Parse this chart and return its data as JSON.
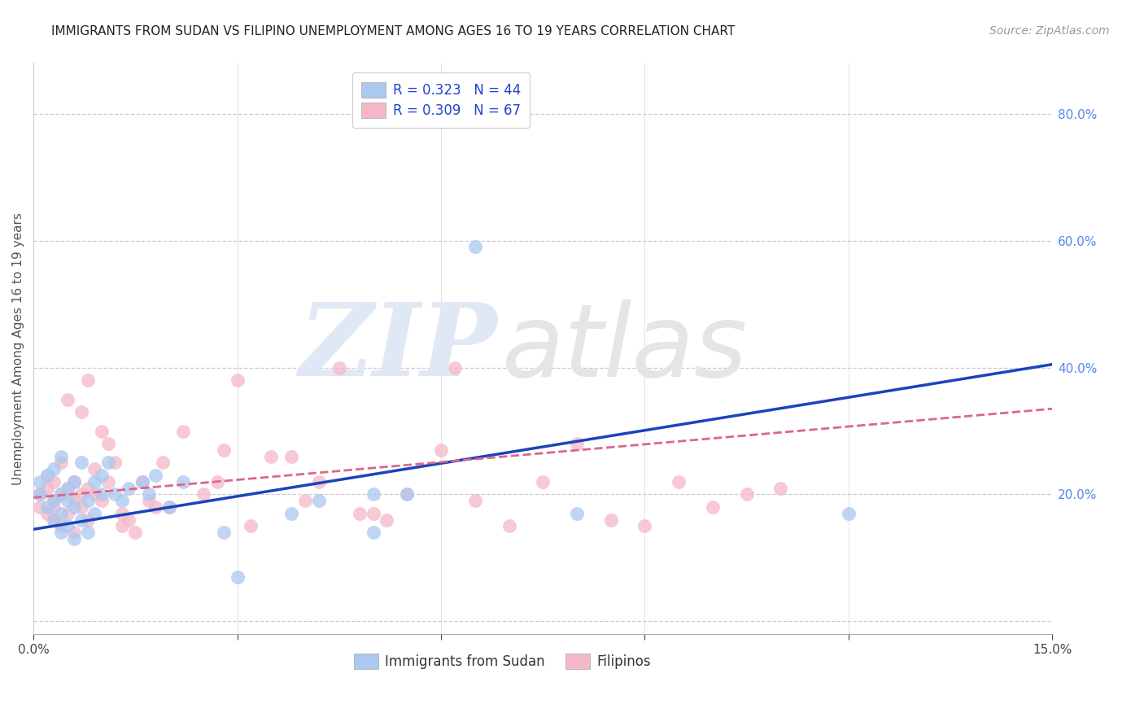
{
  "title": "IMMIGRANTS FROM SUDAN VS FILIPINO UNEMPLOYMENT AMONG AGES 16 TO 19 YEARS CORRELATION CHART",
  "source": "Source: ZipAtlas.com",
  "ylabel": "Unemployment Among Ages 16 to 19 years",
  "xlim": [
    0.0,
    0.15
  ],
  "ylim": [
    -0.02,
    0.88
  ],
  "right_yticks": [
    0.0,
    0.2,
    0.4,
    0.6,
    0.8
  ],
  "right_yticklabels": [
    "",
    "20.0%",
    "40.0%",
    "60.0%",
    "80.0%"
  ],
  "xticks": [
    0.0,
    0.03,
    0.06,
    0.09,
    0.12,
    0.15
  ],
  "xticklabels": [
    "0.0%",
    "",
    "",
    "",
    "",
    "15.0%"
  ],
  "grid_color": "#cccccc",
  "background_color": "#ffffff",
  "series1_color": "#aac8f0",
  "series2_color": "#f5b8c8",
  "line1_color": "#1a44bb",
  "line2_color": "#dd6688",
  "legend_label1": "R = 0.323   N = 44",
  "legend_label2": "R = 0.309   N = 67",
  "legend_bottom_label1": "Immigrants from Sudan",
  "legend_bottom_label2": "Filipinos",
  "watermark_zip": "ZIP",
  "watermark_atlas": "atlas",
  "line1_x0": 0.0,
  "line1_y0": 0.145,
  "line1_x1": 0.15,
  "line1_y1": 0.405,
  "line2_x0": 0.0,
  "line2_y0": 0.195,
  "line2_x1": 0.15,
  "line2_y1": 0.335,
  "series1_x": [
    0.001,
    0.001,
    0.002,
    0.002,
    0.003,
    0.003,
    0.003,
    0.004,
    0.004,
    0.004,
    0.004,
    0.005,
    0.005,
    0.005,
    0.006,
    0.006,
    0.006,
    0.007,
    0.007,
    0.008,
    0.008,
    0.009,
    0.009,
    0.01,
    0.01,
    0.011,
    0.012,
    0.013,
    0.014,
    0.016,
    0.017,
    0.018,
    0.02,
    0.022,
    0.028,
    0.03,
    0.038,
    0.042,
    0.05,
    0.055,
    0.065,
    0.08,
    0.05,
    0.12
  ],
  "series1_y": [
    0.2,
    0.22,
    0.18,
    0.23,
    0.19,
    0.16,
    0.24,
    0.14,
    0.17,
    0.2,
    0.26,
    0.15,
    0.21,
    0.19,
    0.13,
    0.18,
    0.22,
    0.16,
    0.25,
    0.14,
    0.19,
    0.22,
    0.17,
    0.23,
    0.2,
    0.25,
    0.2,
    0.19,
    0.21,
    0.22,
    0.2,
    0.23,
    0.18,
    0.22,
    0.14,
    0.07,
    0.17,
    0.19,
    0.14,
    0.2,
    0.59,
    0.17,
    0.2,
    0.17
  ],
  "series2_x": [
    0.001,
    0.001,
    0.002,
    0.002,
    0.002,
    0.003,
    0.003,
    0.003,
    0.003,
    0.004,
    0.004,
    0.004,
    0.005,
    0.005,
    0.005,
    0.006,
    0.006,
    0.006,
    0.007,
    0.007,
    0.007,
    0.008,
    0.008,
    0.008,
    0.009,
    0.009,
    0.01,
    0.01,
    0.011,
    0.011,
    0.012,
    0.013,
    0.013,
    0.014,
    0.015,
    0.016,
    0.017,
    0.018,
    0.019,
    0.02,
    0.022,
    0.025,
    0.027,
    0.028,
    0.03,
    0.032,
    0.035,
    0.038,
    0.04,
    0.042,
    0.045,
    0.048,
    0.05,
    0.052,
    0.055,
    0.06,
    0.062,
    0.065,
    0.07,
    0.075,
    0.08,
    0.085,
    0.09,
    0.095,
    0.1,
    0.105,
    0.11
  ],
  "series2_y": [
    0.2,
    0.18,
    0.21,
    0.17,
    0.23,
    0.19,
    0.16,
    0.22,
    0.18,
    0.2,
    0.15,
    0.25,
    0.21,
    0.17,
    0.35,
    0.19,
    0.14,
    0.22,
    0.2,
    0.18,
    0.33,
    0.16,
    0.21,
    0.38,
    0.2,
    0.24,
    0.3,
    0.19,
    0.22,
    0.28,
    0.25,
    0.15,
    0.17,
    0.16,
    0.14,
    0.22,
    0.19,
    0.18,
    0.25,
    0.18,
    0.3,
    0.2,
    0.22,
    0.27,
    0.38,
    0.15,
    0.26,
    0.26,
    0.19,
    0.22,
    0.4,
    0.17,
    0.17,
    0.16,
    0.2,
    0.27,
    0.4,
    0.19,
    0.15,
    0.22,
    0.28,
    0.16,
    0.15,
    0.22,
    0.18,
    0.2,
    0.21
  ],
  "title_fontsize": 11,
  "source_fontsize": 10,
  "axis_label_fontsize": 11,
  "tick_fontsize": 11,
  "legend_fontsize": 12
}
